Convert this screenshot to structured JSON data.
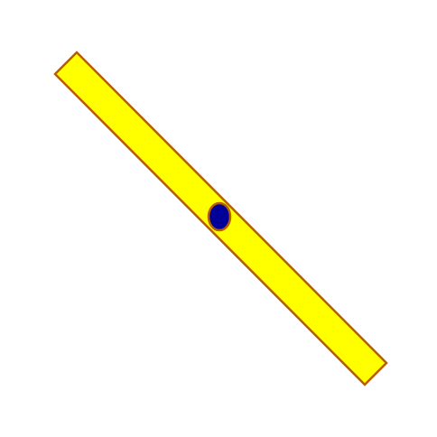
{
  "scene": {
    "background_color": "#ffffff",
    "bar": {
      "fill_color": "#ffff00",
      "stroke_color": "#b85c00"
    },
    "pivot": {
      "fill_color": "#000099",
      "stroke_color": "#b85c00"
    }
  }
}
